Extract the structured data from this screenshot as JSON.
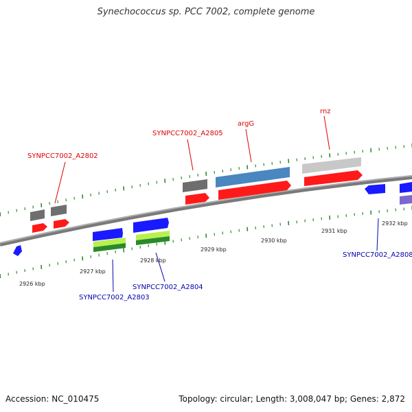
{
  "title": "Synechococcus sp. PCC 7002, complete genome",
  "footer": {
    "accession": "Accession: NC_010475",
    "stats": "Topology: circular; Length: 3,008,047 bp; Genes: 2,872"
  },
  "colors": {
    "backbone": "#888888",
    "tick": "#2e8b2e",
    "cds_red": "#ff1a1a",
    "cds_blue": "#1a1aff",
    "gray_gene": "#6e6e6e",
    "light_gray_gene": "#c8c8c8",
    "steel_blue_gene": "#4a86c0",
    "lime_gene": "#b8f050",
    "green_gene": "#2a8a2a",
    "purple_gene": "#7a68d0",
    "label_red": "#dd0000",
    "label_blue": "#0000aa"
  },
  "scale_labels": [
    "2926 kbp",
    "2927 kbp",
    "2928 kbp",
    "2929 kbp",
    "2930 kbp",
    "2931 kbp",
    "2932 kbp"
  ],
  "gene_labels": {
    "a2802": "SYNPCC7002_A2802",
    "a2805": "SYNPCC7002_A2805",
    "argG": "argG",
    "rnz": "rnz",
    "a2803": "SYNPCC7002_A2803",
    "a2804": "SYNPCC7002_A2804",
    "a2808": "SYNPCC7002_A2808"
  }
}
